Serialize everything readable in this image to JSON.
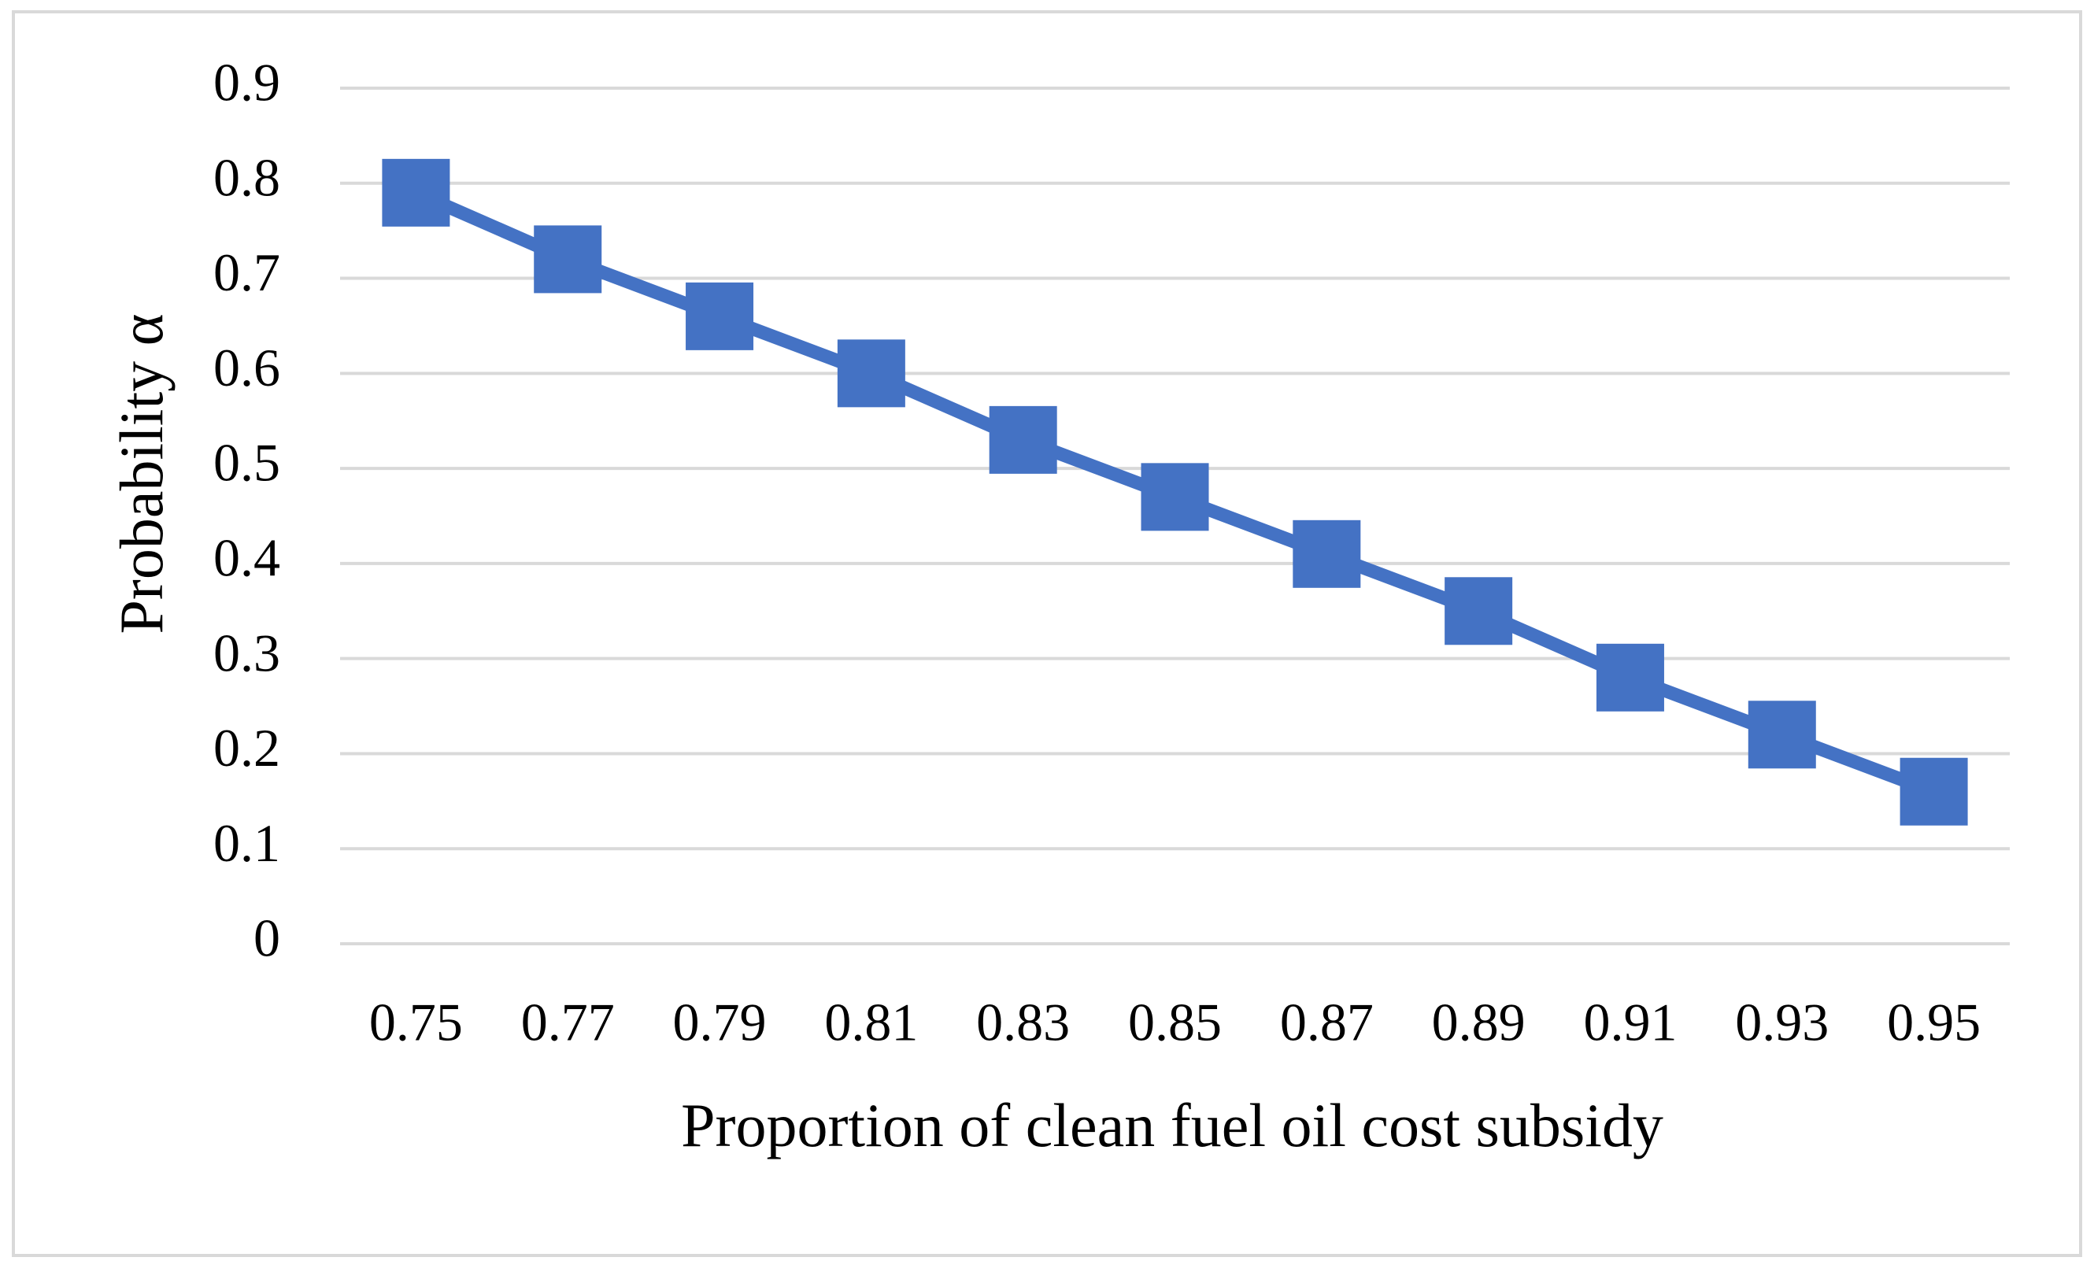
{
  "chart_data": {
    "type": "line",
    "x_label": "Proportion of clean fuel oil cost subsidy",
    "y_label": "Probability α",
    "categories": [
      "0.75",
      "0.77",
      "0.79",
      "0.81",
      "0.83",
      "0.85",
      "0.87",
      "0.89",
      "0.91",
      "0.93",
      "0.95"
    ],
    "series": [
      {
        "color": "#4472c4",
        "marker": "square",
        "values": [
          0.79,
          0.72,
          0.66,
          0.6,
          0.53,
          0.47,
          0.41,
          0.35,
          0.28,
          0.22,
          0.16
        ]
      }
    ],
    "ylim": [
      0,
      0.9
    ],
    "yticks": [
      0,
      0.1,
      0.2,
      0.3,
      0.4,
      0.5,
      0.6,
      0.7,
      0.8,
      0.9
    ],
    "grid": true
  }
}
